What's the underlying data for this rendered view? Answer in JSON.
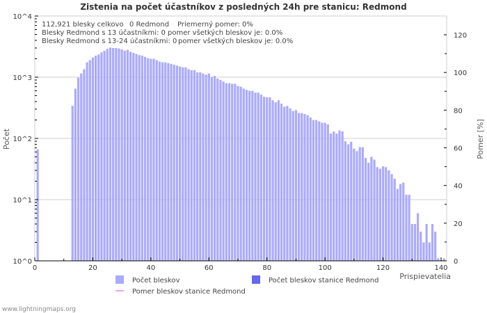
{
  "chart_data": {
    "type": "bar",
    "title": "Zistenia na počet účastníkov z posledných 24h pre stanicu: Redmond",
    "xlabel": "Prispievatelia",
    "ylabel": "Počet",
    "y2label": "Pomer [%]",
    "yscale": "log",
    "ylim": [
      1,
      10000
    ],
    "y2lim": [
      0,
      130
    ],
    "xlim": [
      0,
      142
    ],
    "yticks": [
      "10^0",
      "10^1",
      "10^2",
      "10^3",
      "10^4"
    ],
    "xticks": [
      "0",
      "20",
      "40",
      "60",
      "80",
      "100",
      "120",
      "140"
    ],
    "y2ticks": [
      "0",
      "20",
      "40",
      "60",
      "80",
      "100",
      "120"
    ],
    "info": [
      "112,921 blesky celkovo",
      "0 Redmond",
      "Priemerný pomer: 0%",
      "Blesky Redmond s 13 účastníkmi: 0",
      "pomer všetkých bleskov je: 0.0%",
      "Blesky Redmond s 13-24 účastníkmi: 0",
      "pomer všetkých bleskov je: 0.0%"
    ],
    "legend": [
      "Počet bleskov",
      "Počet bleskov stanice Redmond",
      "Pomer bleskov stanice Redmond"
    ],
    "colors": {
      "bars": "#aaaaff",
      "station": "#6666ee",
      "ratio": "#dd88ee"
    },
    "x": [
      1,
      13,
      14,
      15,
      16,
      17,
      18,
      19,
      20,
      21,
      22,
      23,
      24,
      25,
      26,
      27,
      28,
      29,
      30,
      31,
      32,
      33,
      34,
      35,
      36,
      37,
      38,
      39,
      40,
      41,
      42,
      43,
      44,
      45,
      46,
      47,
      48,
      49,
      50,
      51,
      52,
      53,
      54,
      55,
      56,
      57,
      58,
      59,
      60,
      61,
      62,
      63,
      64,
      65,
      66,
      67,
      68,
      69,
      70,
      71,
      72,
      73,
      74,
      75,
      76,
      77,
      78,
      79,
      80,
      81,
      82,
      83,
      84,
      85,
      86,
      87,
      88,
      89,
      90,
      91,
      92,
      93,
      94,
      95,
      96,
      97,
      98,
      99,
      100,
      101,
      102,
      103,
      104,
      105,
      106,
      107,
      108,
      109,
      110,
      111,
      112,
      113,
      114,
      115,
      116,
      117,
      118,
      119,
      120,
      121,
      122,
      123,
      124,
      125,
      126,
      127,
      128,
      129,
      130,
      131,
      132,
      133,
      134,
      135,
      136,
      137,
      138,
      139,
      141
    ],
    "values": [
      66,
      340,
      650,
      980,
      1150,
      1350,
      1750,
      1900,
      2100,
      2250,
      2350,
      2550,
      2700,
      2900,
      3050,
      3000,
      3000,
      2950,
      2850,
      2700,
      2800,
      2600,
      2500,
      2400,
      2300,
      2250,
      2150,
      2050,
      2000,
      2000,
      1900,
      1800,
      1750,
      1750,
      1700,
      1650,
      1600,
      1550,
      1500,
      1450,
      1450,
      1350,
      1300,
      1300,
      1200,
      1200,
      1150,
      1100,
      1150,
      1000,
      1050,
      950,
      900,
      850,
      800,
      800,
      780,
      780,
      720,
      700,
      650,
      620,
      600,
      600,
      560,
      560,
      520,
      480,
      470,
      470,
      420,
      390,
      420,
      370,
      330,
      340,
      310,
      280,
      290,
      260,
      260,
      250,
      240,
      220,
      200,
      200,
      190,
      180,
      180,
      170,
      120,
      130,
      120,
      135,
      130,
      90,
      80,
      88,
      68,
      62,
      72,
      72,
      48,
      40,
      50,
      45,
      34,
      32,
      35,
      34,
      30,
      26,
      22,
      15,
      18,
      19,
      12,
      12,
      4,
      4,
      6,
      3,
      2,
      4,
      2,
      4,
      3,
      1.1,
      1.1
    ],
    "station_values": "all 0",
    "ratio_values": "all 0"
  },
  "footer": "www.lightningmaps.org"
}
